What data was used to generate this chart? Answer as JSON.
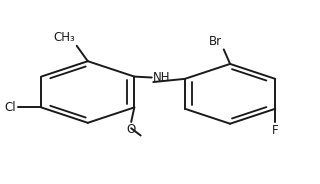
{
  "bg_color": "#ffffff",
  "line_color": "#1a1a1a",
  "lw": 1.4,
  "fs": 8.5,
  "r1cx": 0.27,
  "r1cy": 0.5,
  "r1r": 0.17,
  "r1rot": 0,
  "r2cx": 0.72,
  "r2cy": 0.49,
  "r2r": 0.165,
  "r2rot": 0,
  "db1": [
    0,
    2,
    4
  ],
  "db2": [
    1,
    3,
    5
  ]
}
